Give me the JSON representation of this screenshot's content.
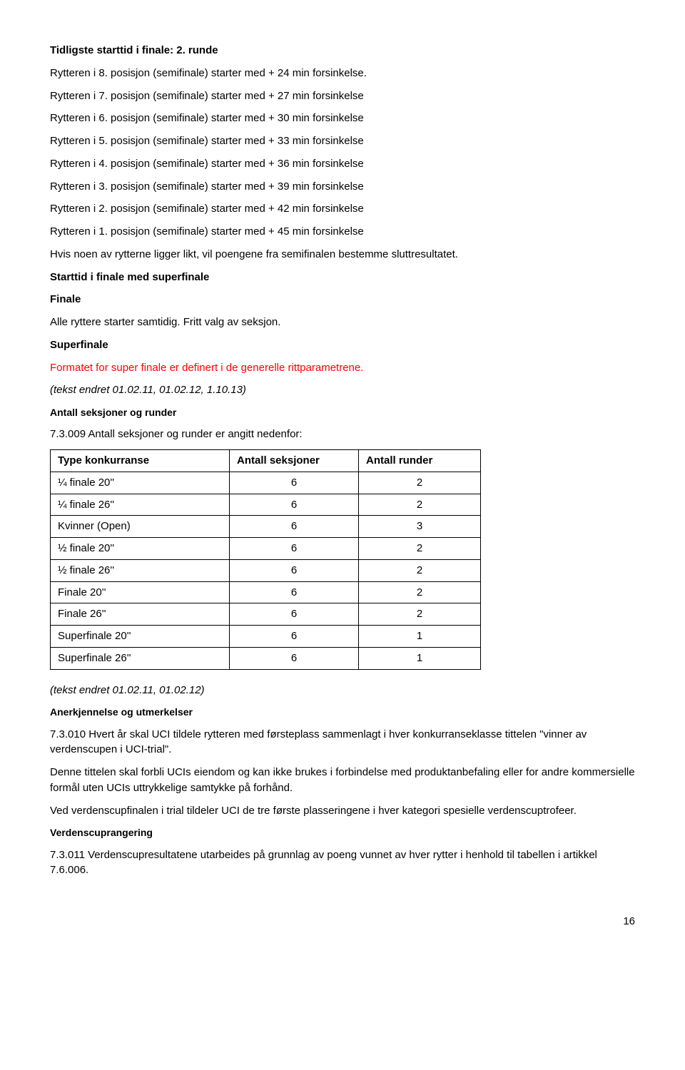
{
  "heading1": "Tidligste starttid i finale: 2. runde",
  "lines": [
    "Rytteren i 8. posisjon (semifinale) starter med + 24 min forsinkelse.",
    "Rytteren i 7. posisjon (semifinale) starter med + 27 min forsinkelse",
    "Rytteren i 6. posisjon (semifinale) starter med + 30 min forsinkelse",
    "Rytteren i 5. posisjon (semifinale) starter med + 33 min forsinkelse",
    "Rytteren i 4. posisjon (semifinale) starter med + 36 min forsinkelse",
    "Rytteren i 3. posisjon (semifinale) starter med + 39 min forsinkelse",
    "Rytteren i 2. posisjon (semifinale) starter med + 42 min forsinkelse",
    "Rytteren i 1. posisjon (semifinale) starter med + 45 min forsinkelse"
  ],
  "note1": "Hvis noen av rytterne ligger likt, vil poengene fra semifinalen bestemme sluttresultatet.",
  "heading2": "Starttid i finale med superfinale",
  "heading3": "Finale",
  "all_rytt": "Alle ryttere starter samtidig. Fritt valg av seksjon.",
  "heading4": "Superfinale",
  "red1": "Formatet for super finale er definert i de generelle rittparametrene.",
  "tekst1": " (tekst endret 01.02.11, 01.02.12, 1.10.13)",
  "heading5": "Antall seksjoner og runder",
  "rule73009": "7.3.009 Antall seksjoner og runder er angitt nedenfor:",
  "table": {
    "headers": [
      "Type konkurranse",
      "Antall seksjoner",
      "Antall runder"
    ],
    "rows": [
      [
        "¼ finale 20''",
        "6",
        "2"
      ],
      [
        "¼ finale 26''",
        "6",
        "2"
      ],
      [
        "Kvinner (Open)",
        "6",
        "3"
      ],
      [
        "½ finale 20''",
        "6",
        "2"
      ],
      [
        "½ finale 26''",
        "6",
        "2"
      ],
      [
        "Finale 20''",
        "6",
        "2"
      ],
      [
        "Finale 26''",
        "6",
        "2"
      ],
      [
        "Superfinale 20''",
        "6",
        "1"
      ],
      [
        "Superfinale 26''",
        "6",
        "1"
      ]
    ]
  },
  "tekst2": "(tekst endret 01.02.11, 01.02.12)",
  "heading6": "Anerkjennelse og utmerkelser",
  "p73010": "7.3.010 Hvert år skal UCI tildele rytteren med førsteplass sammenlagt i hver konkurranseklasse tittelen \"vinner av verdenscupen i UCI-trial\".",
  "p_title": "Denne tittelen skal forbli UCIs eiendom og kan ikke brukes i forbindelse med produktanbefaling eller for andre kommersielle formål uten UCIs uttrykkelige samtykke på forhånd.",
  "p_cup": "Ved verdenscupfinalen i trial tildeler UCI de tre første plasseringene i hver kategori spesielle verdenscuptrofeer.",
  "heading7": "Verdenscuprangering",
  "p73011": "7.3.011 Verdenscupresultatene utarbeides på grunnlag av poeng vunnet av hver rytter i henhold til tabellen i artikkel 7.6.006.",
  "page": "16"
}
